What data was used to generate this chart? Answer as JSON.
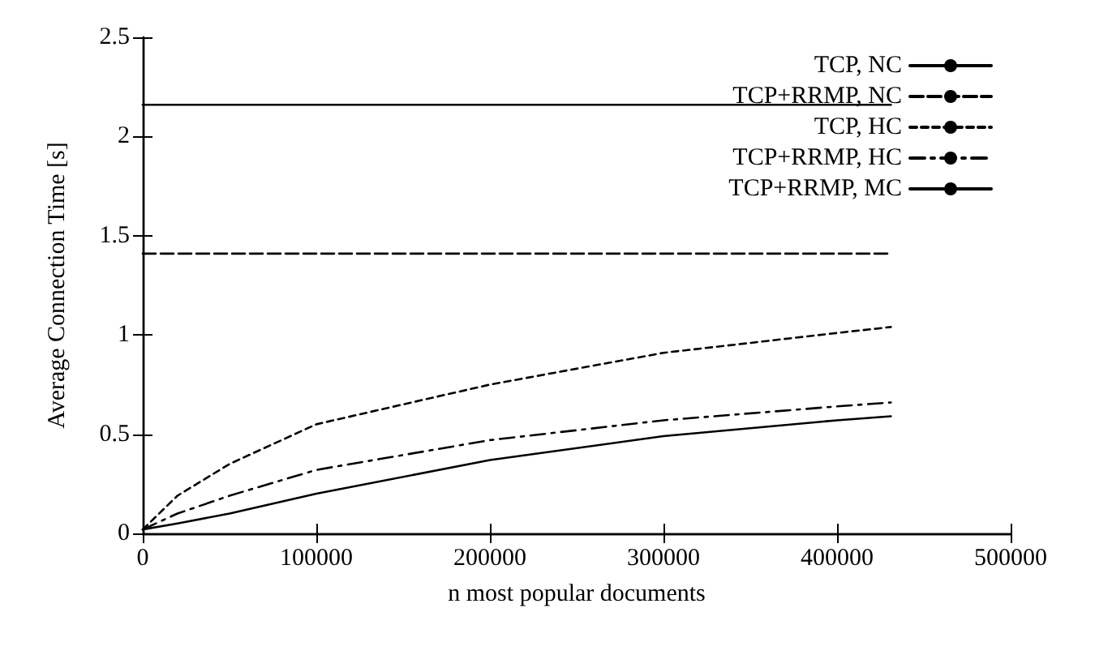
{
  "chart_data": {
    "type": "line",
    "xlabel": "n most popular documents",
    "ylabel": "Average Connection Time [s]",
    "xlim": [
      0,
      500000
    ],
    "xticks": [
      0,
      100000,
      200000,
      300000,
      400000,
      500000
    ],
    "ylim": [
      0,
      2.5
    ],
    "yticks": [
      0,
      0.5,
      1,
      1.5,
      2,
      2.5
    ],
    "grid": false,
    "legend": "top right",
    "marker": "none",
    "series": [
      {
        "name": "TCP, NC",
        "color": "#000000",
        "line_style": "solid",
        "x": [
          0,
          431000
        ],
        "values": [
          2.16,
          2.16
        ]
      },
      {
        "name": "TCP+RRMP, NC",
        "color": "#000000",
        "line_style": "dashed",
        "x": [
          0,
          431000
        ],
        "values": [
          1.41,
          1.41
        ]
      },
      {
        "name": "TCP, HC",
        "color": "#000000",
        "line_style": "dotted",
        "x": [
          0,
          20000,
          50000,
          100000,
          200000,
          300000,
          400000,
          431000
        ],
        "values": [
          0.02,
          0.19,
          0.35,
          0.55,
          0.75,
          0.91,
          1.01,
          1.04
        ]
      },
      {
        "name": "TCP+RRMP, HC",
        "color": "#000000",
        "line_style": "dashdot",
        "x": [
          0,
          20000,
          50000,
          100000,
          200000,
          300000,
          400000,
          431000
        ],
        "values": [
          0.02,
          0.1,
          0.19,
          0.32,
          0.47,
          0.57,
          0.64,
          0.66
        ]
      },
      {
        "name": "TCP+RRMP, MC",
        "color": "#000000",
        "line_style": "solid",
        "x": [
          0,
          20000,
          50000,
          100000,
          200000,
          300000,
          400000,
          431000
        ],
        "values": [
          0.02,
          0.05,
          0.1,
          0.2,
          0.37,
          0.49,
          0.57,
          0.59
        ]
      }
    ]
  }
}
